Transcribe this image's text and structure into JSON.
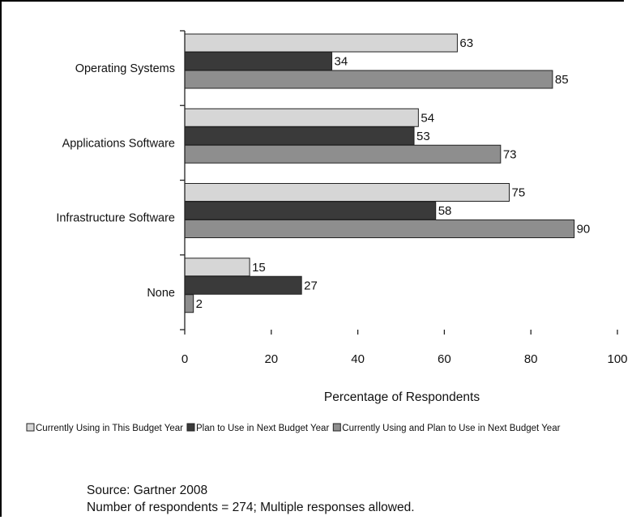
{
  "chart_data": {
    "type": "bar",
    "orientation": "horizontal",
    "categories": [
      "Operating Systems",
      "Applications Software",
      "Infrastructure Software",
      "None"
    ],
    "series": [
      {
        "name": "Currently Using in This Budget Year",
        "values": [
          63,
          54,
          75,
          15
        ],
        "color": "#d6d6d6"
      },
      {
        "name": "Plan to Use in Next Budget Year",
        "values": [
          34,
          53,
          58,
          27
        ],
        "color": "#3a3a3a"
      },
      {
        "name": "Currently Using and Plan to Use in Next Budget Year",
        "values": [
          85,
          73,
          90,
          2
        ],
        "color": "#8e8e8e"
      }
    ],
    "xlabel": "Percentage of Respondents",
    "ylabel": "",
    "xlim": [
      0,
      100
    ],
    "xticks": [
      0,
      20,
      40,
      60,
      80,
      100
    ],
    "grid": false,
    "legend_position": "bottom"
  },
  "source": {
    "line1": "Source: Gartner 2008",
    "line2": "Number of respondents = 274; Multiple responses allowed."
  }
}
